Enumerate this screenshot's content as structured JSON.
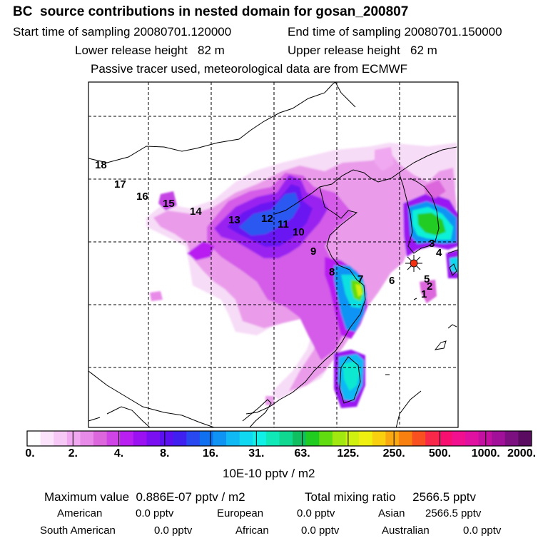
{
  "header": {
    "title": "BC  source contributions in nested domain for gosan_200807",
    "start_time": "Start time of sampling 20080701.120000",
    "end_time": "End time of sampling 20080701.150000",
    "lower_release": "Lower release height   82 m",
    "upper_release": "Upper release height   62 m",
    "tracer_note": "Passive tracer used, meteorological data are from ECMWF"
  },
  "map": {
    "receptor_marker": "star-icon",
    "trajectory_labels": [
      "1",
      "2",
      "3",
      "4",
      "5",
      "6",
      "7",
      "8",
      "9",
      "10",
      "11",
      "12",
      "13",
      "14",
      "15",
      "16",
      "17",
      "18"
    ]
  },
  "colorbar": {
    "tick_labels": [
      "0.",
      "2.",
      "4.",
      "8.",
      "16.",
      "31.",
      "63.",
      "125.",
      "250.",
      "500.",
      "1000.",
      "2000."
    ],
    "colors": [
      "#ffffff",
      "#fbe3fb",
      "#f6c8f6",
      "#f0a8f0",
      "#e88ae8",
      "#dc66dc",
      "#cf44e4",
      "#b91ff0",
      "#9a12f2",
      "#7a10f2",
      "#5b10f2",
      "#4020f0",
      "#2848f0",
      "#1070f0",
      "#1094f4",
      "#10b8f4",
      "#10d8f0",
      "#10f0e6",
      "#10e8b8",
      "#10d890",
      "#10c060",
      "#20cc20",
      "#60dc10",
      "#a0e810",
      "#d0f010",
      "#f0f010",
      "#f8d010",
      "#f8a810",
      "#f88010",
      "#f85020",
      "#f82848",
      "#f81070",
      "#f01090",
      "#e010a0",
      "#c410a0",
      "#a01098",
      "#7c1080",
      "#5a0c60"
    ],
    "unit": "10E-10 pptv / m2"
  },
  "summary": {
    "maximum": "Maximum value  0.886E-07 pptv / m2",
    "total": "Total mixing ratio     2566.5 pptv",
    "rows": [
      [
        {
          "label": "American",
          "value": "0.0 pptv"
        },
        {
          "label": "European",
          "value": "0.0 pptv"
        },
        {
          "label": "Asian",
          "value": "2566.5 pptv"
        }
      ],
      [
        {
          "label": "South American",
          "value": "0.0 pptv"
        },
        {
          "label": "African",
          "value": "0.0 pptv"
        },
        {
          "label": "Australian",
          "value": "0.0 pptv"
        }
      ]
    ]
  }
}
